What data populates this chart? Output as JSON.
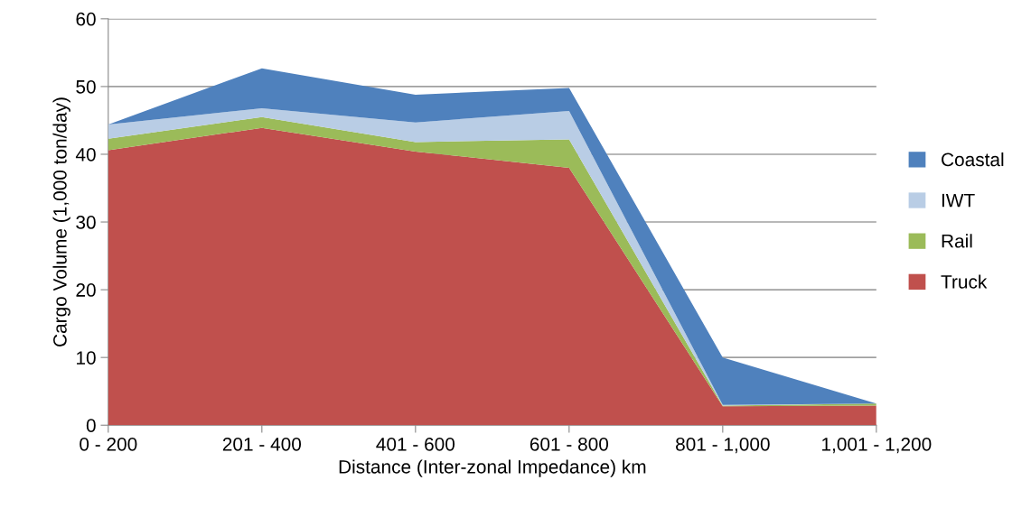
{
  "chart_data": {
    "type": "area",
    "stacked": true,
    "xlabel": "Distance (Inter-zonal Impedance) km",
    "ylabel": "Cargo Volume (1,000 ton/day)",
    "categories": [
      "0 - 200",
      "201 - 400",
      "401 - 600",
      "601 - 800",
      "801 - 1,000",
      "1,001 - 1,200"
    ],
    "series": [
      {
        "name": "Truck",
        "color": "#c0504d",
        "values": [
          40.6,
          43.9,
          40.4,
          38.0,
          2.8,
          2.9
        ]
      },
      {
        "name": "Rail",
        "color": "#9bbb59",
        "values": [
          1.7,
          1.6,
          1.4,
          4.2,
          0.1,
          0.3
        ]
      },
      {
        "name": "IWT",
        "color": "#b9cde5",
        "values": [
          2.1,
          1.3,
          2.9,
          4.2,
          0.1,
          0.0
        ]
      },
      {
        "name": "Coastal",
        "color": "#4f81bd",
        "values": [
          0.0,
          5.9,
          4.1,
          3.4,
          7.0,
          0.0
        ]
      }
    ],
    "ylim": [
      0,
      60
    ],
    "yticks": [
      0,
      10,
      20,
      30,
      40,
      50,
      60
    ],
    "grid": "y",
    "legend": "right"
  }
}
